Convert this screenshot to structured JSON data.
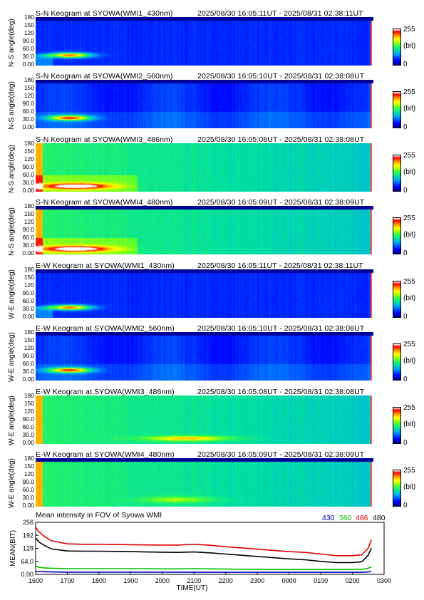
{
  "panels": [
    {
      "title": "S-N Keogram at SYOWA(WMI1_430nm)",
      "time": "2025/08/30 16:05:11UT - 2025/08/31 02:38:11UT",
      "ylabel": "N-S angle(deg)",
      "style": "dark"
    },
    {
      "title": "S-N Keogram at SYOWA(WMI2_560nm)",
      "time": "2025/08/30 16:05:10UT - 2025/08/31 02:38:08UT",
      "ylabel": "N-S angle(deg)",
      "style": "dark2"
    },
    {
      "title": "S-N Keogram at SYOWA(WMI3_486nm)",
      "time": "2025/08/30 16:05:08UT - 2025/08/31 02:38:08UT",
      "ylabel": "N-S angle(deg)",
      "style": "bright"
    },
    {
      "title": "S-N Keogram at SYOWA(WMI4_480nm)",
      "time": "2025/08/30 16:05:09UT - 2025/08/31 02:38:09UT",
      "ylabel": "N-S angle(deg)",
      "style": "bright2"
    },
    {
      "title": "E-W Keogram at SYOWA(WMI1_430nm)",
      "time": "2025/08/30 16:05:11UT - 2025/08/31 02:38:11UT",
      "ylabel": "W-E angle(deg)",
      "style": "dark"
    },
    {
      "title": "E-W Keogram at SYOWA(WMI2_560nm)",
      "time": "2025/08/30 16:05:10UT - 2025/08/31 02:38:08UT",
      "ylabel": "W-E angle(deg)",
      "style": "dark2"
    },
    {
      "title": "E-W Keogram at SYOWA(WMI3_486nm)",
      "time": "2025/08/30 16:05:08UT - 2025/08/31 02:38:08UT",
      "ylabel": "W-E angle(deg)",
      "style": "bright3"
    },
    {
      "title": "E-W Keogram at SYOWA(WMI4_480nm)",
      "time": "2025/08/30 16:05:09UT - 2025/08/31 02:38:09UT",
      "ylabel": "W-E angle(deg)",
      "style": "bright4"
    }
  ],
  "angle_ticks": [
    "180",
    "150",
    "120",
    "90.0",
    "60.0",
    "30.0",
    "0.00"
  ],
  "colorbar": {
    "max": "255",
    "unit": "(bit)",
    "min": "0"
  },
  "chart_data": {
    "type": "line",
    "title": "Mean intensity in FOV of Syowa WMI",
    "xlabel": "TIME(UT)",
    "ylabel": "MEAN(BIT)",
    "x_ticks": [
      "1600",
      "1700",
      "1800",
      "1900",
      "2000",
      "2100",
      "2200",
      "2300",
      "0000",
      "0100",
      "0200",
      "0300"
    ],
    "y_ticks": [
      "256",
      "192",
      "128",
      "64.0",
      "0.00"
    ],
    "ylim": [
      0,
      256
    ],
    "x": [
      16.0,
      16.1,
      16.25,
      16.5,
      17.0,
      17.5,
      18.0,
      18.5,
      19.0,
      19.5,
      20.0,
      20.5,
      21.0,
      21.5,
      22.0,
      22.5,
      23.0,
      23.5,
      24.0,
      24.5,
      25.0,
      25.5,
      26.0,
      26.3,
      26.5,
      26.6
    ],
    "series": [
      {
        "name": "430",
        "color": "#0000c0",
        "values": [
          15,
          14,
          13,
          12,
          11,
          11,
          11,
          11,
          11,
          11,
          11,
          11,
          10,
          10,
          10,
          10,
          10,
          10,
          10,
          10,
          10,
          10,
          10,
          10,
          12,
          14
        ]
      },
      {
        "name": "560",
        "color": "#00c000",
        "values": [
          42,
          35,
          32,
          30,
          28,
          28,
          28,
          28,
          28,
          28,
          27,
          27,
          28,
          27,
          26,
          25,
          25,
          24,
          24,
          24,
          24,
          24,
          24,
          25,
          30,
          36
        ]
      },
      {
        "name": "486",
        "color": "#e00000",
        "values": [
          232,
          210,
          190,
          165,
          150,
          148,
          148,
          147,
          146,
          145,
          144,
          144,
          148,
          143,
          136,
          130,
          124,
          118,
          112,
          108,
          100,
          92,
          92,
          96,
          130,
          170
        ]
      },
      {
        "name": "480",
        "color": "#000000",
        "values": [
          180,
          160,
          145,
          125,
          115,
          114,
          114,
          113,
          112,
          110,
          109,
          108,
          110,
          106,
          100,
          94,
          88,
          82,
          76,
          72,
          64,
          58,
          58,
          62,
          95,
          130
        ]
      }
    ]
  }
}
